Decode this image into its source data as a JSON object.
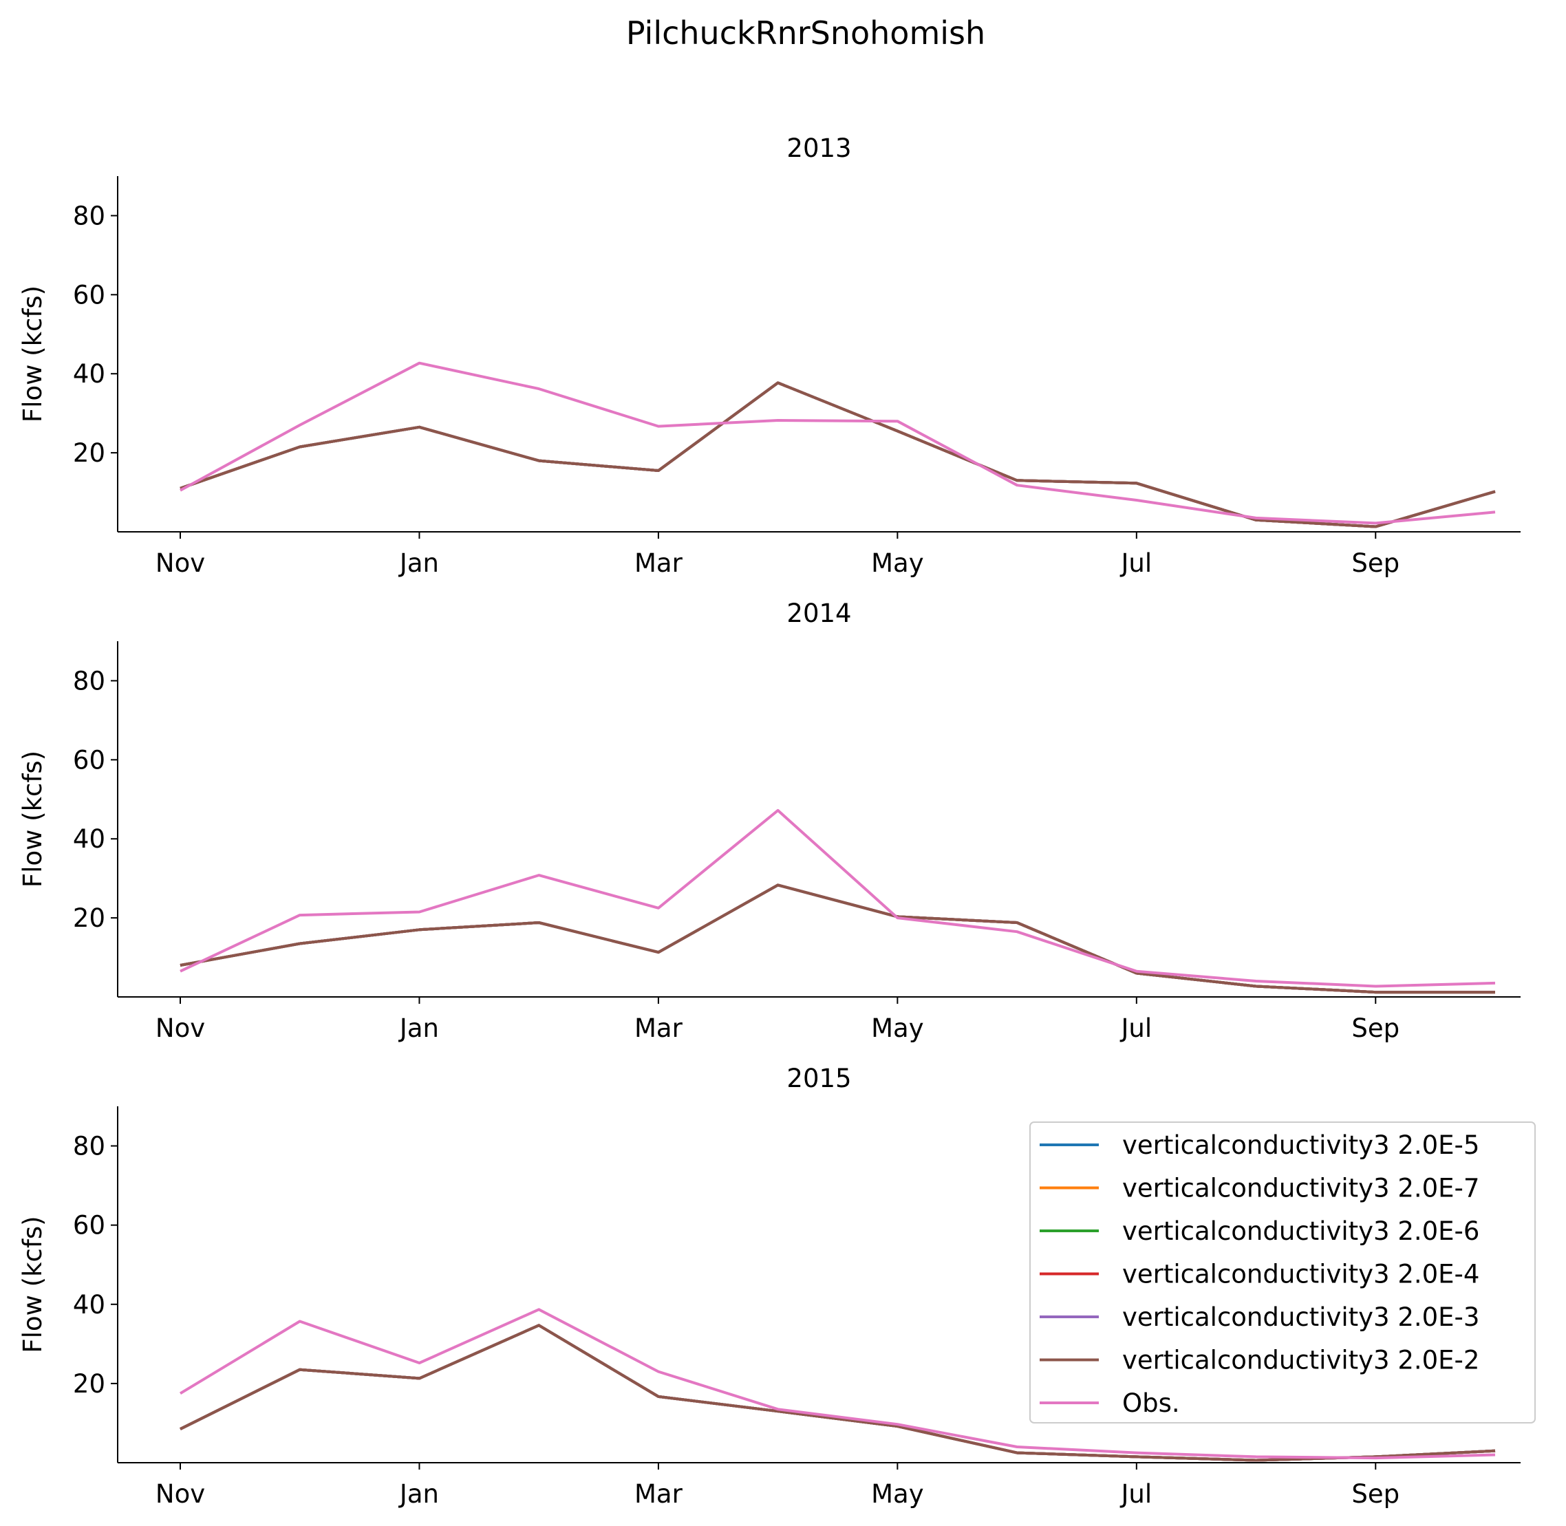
{
  "figure": {
    "title": "PilchuckRnrSnohomish"
  },
  "chart_data": [
    {
      "type": "line",
      "title": "2013",
      "xlabel": "",
      "ylabel": "Flow (kcfs)",
      "x": [
        "Nov",
        "Dec",
        "Jan",
        "Feb",
        "Mar",
        "Apr",
        "May",
        "Jun",
        "Jul",
        "Aug",
        "Sep",
        "Oct"
      ],
      "x_ticks": [
        "Nov",
        "Jan",
        "Mar",
        "May",
        "Jul",
        "Sep"
      ],
      "y_ticks": [
        20,
        40,
        60,
        80
      ],
      "ylim": [
        0,
        90
      ],
      "grid": false,
      "series": [
        {
          "name": "verticalconductivity3 2.0E-5",
          "values": [
            11,
            21.5,
            26.5,
            18,
            15.5,
            37.7,
            25.5,
            13,
            12.3,
            3,
            1.3,
            10.2
          ]
        },
        {
          "name": "verticalconductivity3 2.0E-7",
          "values": [
            11,
            21.5,
            26.5,
            18,
            15.5,
            37.7,
            25.5,
            13,
            12.3,
            3,
            1.3,
            10.2
          ]
        },
        {
          "name": "verticalconductivity3 2.0E-6",
          "values": [
            11,
            21.5,
            26.5,
            18,
            15.5,
            37.7,
            25.5,
            13,
            12.3,
            3,
            1.3,
            10.2
          ]
        },
        {
          "name": "verticalconductivity3 2.0E-4",
          "values": [
            11,
            21.5,
            26.5,
            18,
            15.5,
            37.7,
            25.5,
            13,
            12.3,
            3,
            1.3,
            10.2
          ]
        },
        {
          "name": "verticalconductivity3 2.0E-3",
          "values": [
            11,
            21.5,
            26.5,
            18,
            15.5,
            37.7,
            25.5,
            13,
            12.3,
            3,
            1.3,
            10.2
          ]
        },
        {
          "name": "verticalconductivity3 2.0E-2",
          "values": [
            11,
            21.5,
            26.5,
            18,
            15.5,
            37.7,
            25.5,
            13,
            12.3,
            3,
            1.3,
            10.2
          ]
        },
        {
          "name": "Obs.",
          "values": [
            10.5,
            27,
            42.7,
            36.2,
            26.7,
            28.2,
            28,
            11.8,
            8,
            3.5,
            2.2,
            5
          ]
        }
      ]
    },
    {
      "type": "line",
      "title": "2014",
      "xlabel": "",
      "ylabel": "Flow (kcfs)",
      "x": [
        "Nov",
        "Dec",
        "Jan",
        "Feb",
        "Mar",
        "Apr",
        "May",
        "Jun",
        "Jul",
        "Aug",
        "Sep",
        "Oct"
      ],
      "x_ticks": [
        "Nov",
        "Jan",
        "Mar",
        "May",
        "Jul",
        "Sep"
      ],
      "y_ticks": [
        20,
        40,
        60,
        80
      ],
      "ylim": [
        0,
        90
      ],
      "grid": false,
      "series": [
        {
          "name": "verticalconductivity3 2.0E-5",
          "values": [
            8,
            13.5,
            17,
            18.8,
            11.3,
            28.3,
            20.3,
            18.8,
            6,
            2.7,
            1.2,
            1.2
          ]
        },
        {
          "name": "verticalconductivity3 2.0E-7",
          "values": [
            8,
            13.5,
            17,
            18.8,
            11.3,
            28.3,
            20.3,
            18.8,
            6,
            2.7,
            1.2,
            1.2
          ]
        },
        {
          "name": "verticalconductivity3 2.0E-6",
          "values": [
            8,
            13.5,
            17,
            18.8,
            11.3,
            28.3,
            20.3,
            18.8,
            6,
            2.7,
            1.2,
            1.2
          ]
        },
        {
          "name": "verticalconductivity3 2.0E-4",
          "values": [
            8,
            13.5,
            17,
            18.8,
            11.3,
            28.3,
            20.3,
            18.8,
            6,
            2.7,
            1.2,
            1.2
          ]
        },
        {
          "name": "verticalconductivity3 2.0E-3",
          "values": [
            8,
            13.5,
            17,
            18.8,
            11.3,
            28.3,
            20.3,
            18.8,
            6,
            2.7,
            1.2,
            1.2
          ]
        },
        {
          "name": "verticalconductivity3 2.0E-2",
          "values": [
            8,
            13.5,
            17,
            18.8,
            11.3,
            28.3,
            20.3,
            18.8,
            6,
            2.7,
            1.2,
            1.2
          ]
        },
        {
          "name": "Obs.",
          "values": [
            6.5,
            20.7,
            21.5,
            30.8,
            22.5,
            47.2,
            20,
            16.5,
            6.5,
            4,
            2.7,
            3.5
          ]
        }
      ]
    },
    {
      "type": "line",
      "title": "2015",
      "xlabel": "",
      "ylabel": "Flow (kcfs)",
      "x": [
        "Nov",
        "Dec",
        "Jan",
        "Feb",
        "Mar",
        "Apr",
        "May",
        "Jun",
        "Jul",
        "Aug",
        "Sep",
        "Oct"
      ],
      "x_ticks": [
        "Nov",
        "Jan",
        "Mar",
        "May",
        "Jul",
        "Sep"
      ],
      "y_ticks": [
        20,
        40,
        60,
        80
      ],
      "ylim": [
        0,
        90
      ],
      "grid": false,
      "legend": "top-right",
      "series": [
        {
          "name": "verticalconductivity3 2.0E-5",
          "values": [
            8.5,
            23.5,
            21.3,
            34.7,
            16.7,
            13,
            9.2,
            2.5,
            1.5,
            0.6,
            1.5,
            3
          ]
        },
        {
          "name": "verticalconductivity3 2.0E-7",
          "values": [
            8.5,
            23.5,
            21.3,
            34.7,
            16.7,
            13,
            9.2,
            2.5,
            1.5,
            0.6,
            1.5,
            3
          ]
        },
        {
          "name": "verticalconductivity3 2.0E-6",
          "values": [
            8.5,
            23.5,
            21.3,
            34.7,
            16.7,
            13,
            9.2,
            2.5,
            1.5,
            0.6,
            1.5,
            3
          ]
        },
        {
          "name": "verticalconductivity3 2.0E-4",
          "values": [
            8.5,
            23.5,
            21.3,
            34.7,
            16.7,
            13,
            9.2,
            2.5,
            1.5,
            0.6,
            1.5,
            3
          ]
        },
        {
          "name": "verticalconductivity3 2.0E-3",
          "values": [
            8.5,
            23.5,
            21.3,
            34.7,
            16.7,
            13,
            9.2,
            2.5,
            1.5,
            0.6,
            1.5,
            3
          ]
        },
        {
          "name": "verticalconductivity3 2.0E-2",
          "values": [
            8.5,
            23.5,
            21.3,
            34.7,
            16.7,
            13,
            9.2,
            2.5,
            1.5,
            0.6,
            1.5,
            3
          ]
        },
        {
          "name": "Obs.",
          "values": [
            17.5,
            35.7,
            25.2,
            38.7,
            23,
            13.5,
            9.7,
            4,
            2.5,
            1.5,
            1.2,
            2
          ]
        }
      ]
    }
  ],
  "colors": {
    "verticalconductivity3 2.0E-5": "#1f77b4",
    "verticalconductivity3 2.0E-7": "#ff7f0e",
    "verticalconductivity3 2.0E-6": "#2ca02c",
    "verticalconductivity3 2.0E-4": "#d62728",
    "verticalconductivity3 2.0E-3": "#9467bd",
    "verticalconductivity3 2.0E-2": "#8c564b",
    "Obs.": "#e377c2"
  }
}
